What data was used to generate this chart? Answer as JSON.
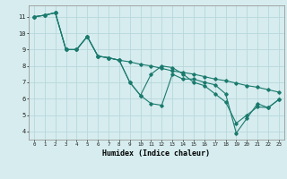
{
  "xlabel": "Humidex (Indice chaleur)",
  "xlim": [
    -0.5,
    23.5
  ],
  "ylim": [
    3.5,
    11.7
  ],
  "yticks": [
    4,
    5,
    6,
    7,
    8,
    9,
    10,
    11
  ],
  "xticks": [
    0,
    1,
    2,
    3,
    4,
    5,
    6,
    7,
    8,
    9,
    10,
    11,
    12,
    13,
    14,
    15,
    16,
    17,
    18,
    19,
    20,
    21,
    22,
    23
  ],
  "bg_color": "#d6ecee",
  "grid_color": "#b8d8dc",
  "line_color": "#1a7a6e",
  "series1_x": [
    0,
    1,
    2,
    3,
    4,
    5,
    6,
    7,
    8,
    9,
    10,
    11,
    12,
    13,
    14,
    15,
    16,
    17,
    18,
    19,
    20,
    21,
    22,
    23
  ],
  "series1_y": [
    11.0,
    11.1,
    11.25,
    9.0,
    9.0,
    9.8,
    8.6,
    8.5,
    8.35,
    7.0,
    6.2,
    5.7,
    5.6,
    7.5,
    7.2,
    7.2,
    7.0,
    6.85,
    6.3,
    3.9,
    4.8,
    5.7,
    5.45,
    5.95
  ],
  "series2_x": [
    0,
    1,
    2,
    3,
    4,
    5,
    6,
    7,
    8,
    9,
    10,
    11,
    12,
    13,
    14,
    15,
    16,
    17,
    18,
    19,
    20,
    21,
    22,
    23
  ],
  "series2_y": [
    11.0,
    11.1,
    11.25,
    9.0,
    9.0,
    9.8,
    8.6,
    8.5,
    8.35,
    8.25,
    8.1,
    8.0,
    7.85,
    7.7,
    7.6,
    7.5,
    7.35,
    7.2,
    7.1,
    6.95,
    6.8,
    6.7,
    6.55,
    6.4
  ],
  "series3_x": [
    0,
    1,
    2,
    3,
    4,
    5,
    6,
    7,
    8,
    9,
    10,
    11,
    12,
    13,
    14,
    15,
    16,
    17,
    18,
    19,
    20,
    21,
    22,
    23
  ],
  "series3_y": [
    11.0,
    11.1,
    11.25,
    9.0,
    9.0,
    9.8,
    8.6,
    8.5,
    8.35,
    7.0,
    6.2,
    7.5,
    8.0,
    7.9,
    7.5,
    7.0,
    6.8,
    6.3,
    5.8,
    4.5,
    5.0,
    5.5,
    5.45,
    5.95
  ]
}
